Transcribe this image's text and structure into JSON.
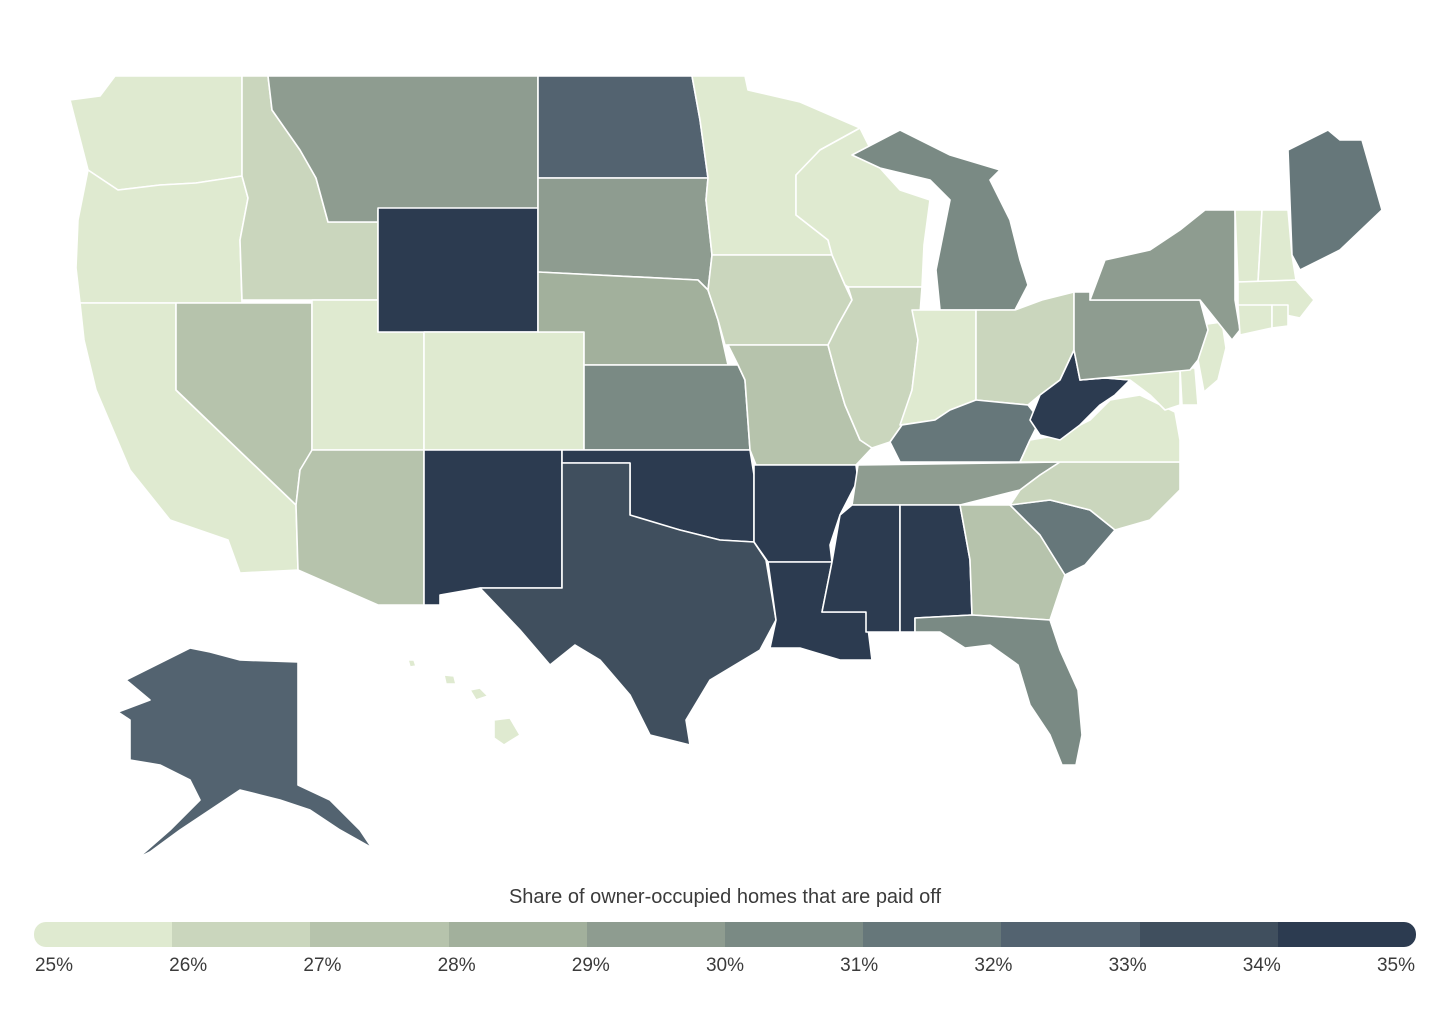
{
  "legend": {
    "title": "Share of owner-occupied homes that are paid off",
    "ticks": [
      "25%",
      "26%",
      "27%",
      "28%",
      "29%",
      "30%",
      "31%",
      "32%",
      "33%",
      "34%",
      "35%"
    ],
    "colors": [
      "#dfead0",
      "#cad6bd",
      "#b6c3ac",
      "#a2b09c",
      "#8e9c90",
      "#7a8a84",
      "#66777a",
      "#536370",
      "#404f5e",
      "#2c3b50"
    ]
  },
  "states": {
    "WA": {
      "band": 0
    },
    "OR": {
      "band": 0
    },
    "CA": {
      "band": 0
    },
    "ID": {
      "band": 1
    },
    "NV": {
      "band": 2
    },
    "UT": {
      "band": 0
    },
    "AZ": {
      "band": 2
    },
    "MT": {
      "band": 4
    },
    "WY": {
      "band": 9
    },
    "CO": {
      "band": 0
    },
    "NM": {
      "band": 9
    },
    "ND": {
      "band": 7
    },
    "SD": {
      "band": 4
    },
    "NE": {
      "band": 3
    },
    "KS": {
      "band": 5
    },
    "OK": {
      "band": 9
    },
    "TX": {
      "band": 8
    },
    "MN": {
      "band": 0
    },
    "IA": {
      "band": 1
    },
    "MO": {
      "band": 2
    },
    "AR": {
      "band": 9
    },
    "LA": {
      "band": 9
    },
    "WI": {
      "band": 0
    },
    "IL": {
      "band": 1
    },
    "MI": {
      "band": 5
    },
    "IN": {
      "band": 0
    },
    "OH": {
      "band": 1
    },
    "KY": {
      "band": 6
    },
    "TN": {
      "band": 4
    },
    "MS": {
      "band": 9
    },
    "AL": {
      "band": 9
    },
    "GA": {
      "band": 2
    },
    "FL": {
      "band": 5
    },
    "SC": {
      "band": 6
    },
    "NC": {
      "band": 1
    },
    "VA": {
      "band": 0
    },
    "WV": {
      "band": 9
    },
    "PA": {
      "band": 4
    },
    "NY": {
      "band": 4
    },
    "VT": {
      "band": 0
    },
    "NH": {
      "band": 0
    },
    "ME": {
      "band": 6
    },
    "MA": {
      "band": 0
    },
    "RI": {
      "band": 0
    },
    "CT": {
      "band": 0
    },
    "NJ": {
      "band": 0
    },
    "DE": {
      "band": 0
    },
    "MD": {
      "band": 0
    },
    "AK": {
      "band": 7
    },
    "HI": {
      "band": 0
    }
  }
}
